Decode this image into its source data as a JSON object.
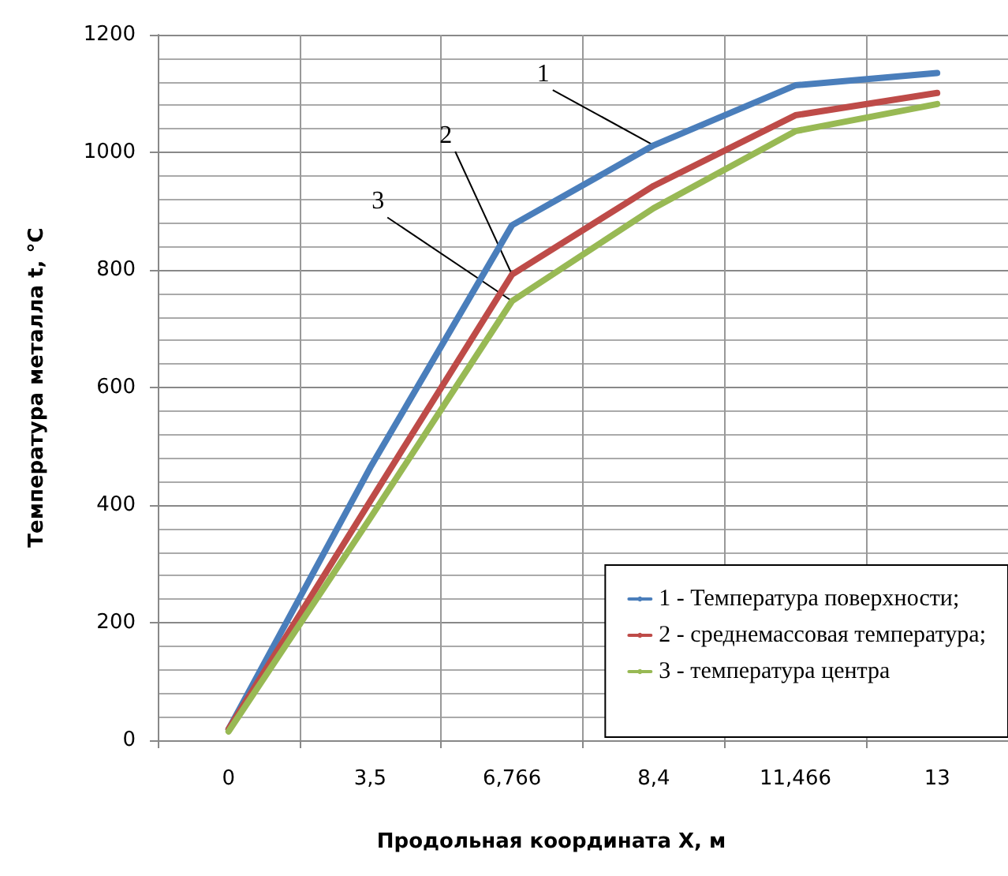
{
  "chart_data": {
    "type": "line",
    "xlabel": "Продольная координата X, м",
    "ylabel": "Температура металла t, °С",
    "categories": [
      "0",
      "3,5",
      "6,766",
      "8,4",
      "11,466",
      "13"
    ],
    "series": [
      {
        "name": "1 - Температура поверхности;",
        "color": "#4a7ebb",
        "values": [
          19,
          464,
          876,
          1012,
          1114,
          1135
        ]
      },
      {
        "name": "2 - среднемассовая температура;",
        "color": "#be4b48",
        "values": [
          19,
          407,
          792,
          943,
          1063,
          1101
        ]
      },
      {
        "name": "3 - температура центра",
        "color": "#98b954",
        "values": [
          15,
          378,
          747,
          905,
          1036,
          1082
        ]
      }
    ],
    "ylim": [
      0,
      1200
    ],
    "yticks": [
      0,
      200,
      400,
      600,
      800,
      1000,
      1200
    ],
    "grid": true,
    "legend": "bottom right",
    "marker": "none",
    "line_style": "solid",
    "annotations": [
      {
        "text": "1",
        "x": "8,4",
        "y": 1012
      },
      {
        "text": "2",
        "x": "6,766",
        "y": 792
      },
      {
        "text": "3",
        "x": "6,766",
        "y": 747
      }
    ]
  }
}
